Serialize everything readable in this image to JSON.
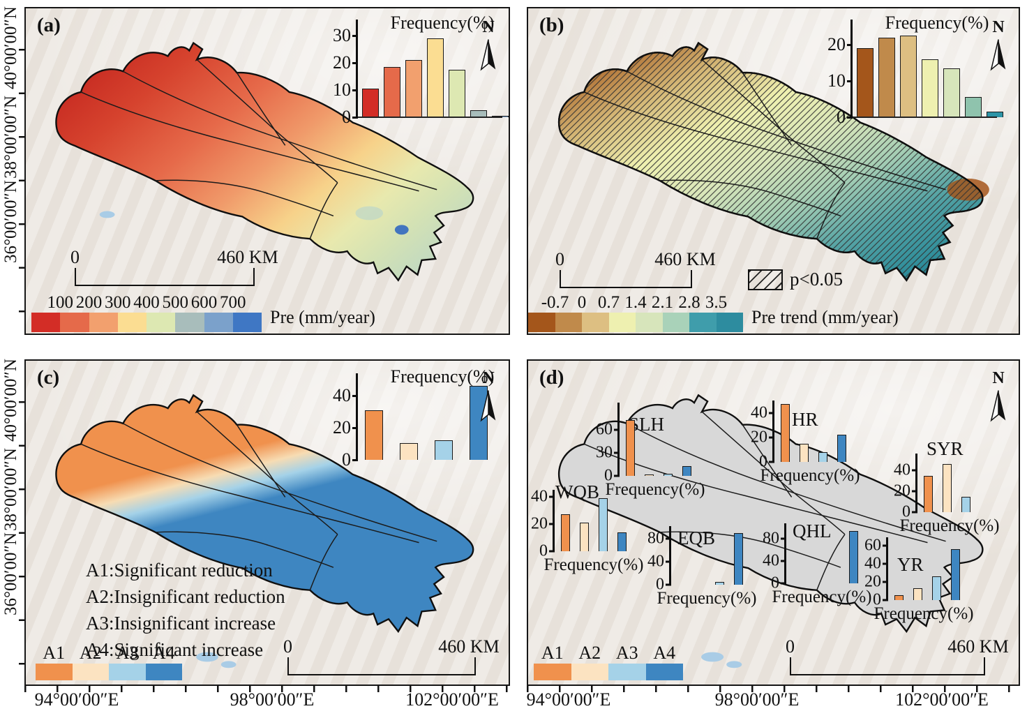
{
  "figure": {
    "north_label": "N",
    "lat_labels": [
      "40°00′00″N",
      "38°00′00″N",
      "36°00′00″N"
    ],
    "lon_labels": [
      "94°00′00″E",
      "98°00′00″E",
      "102°00′00″E"
    ],
    "scalebar": {
      "start": "0",
      "end": "460 KM"
    }
  },
  "palettes": {
    "pre": [
      "#d32d26",
      "#e56a4a",
      "#f2a06e",
      "#fbdd92",
      "#dde8b2",
      "#a8bdbb",
      "#7ba1cb",
      "#3f77c4"
    ],
    "trend": [
      "#a4561b",
      "#c08a4b",
      "#ddbf82",
      "#eef0b0",
      "#d7e5bb",
      "#a9d2b9",
      "#3f9dab",
      "#2d8c9f"
    ],
    "classes": {
      "A1": "#f0914d",
      "A2": "#fce3c1",
      "A3": "#a5d2e8",
      "A4": "#3e86c1"
    }
  },
  "panel_a": {
    "label": "(a)",
    "colorbar": {
      "label_mode": "boundary",
      "labels": [
        "100",
        "200",
        "300",
        "400",
        "500",
        "600",
        "700"
      ],
      "colors": [
        "#d32d26",
        "#e56a4a",
        "#f2a06e",
        "#fbdd92",
        "#dde8b2",
        "#a8bdbb",
        "#7ba1cb",
        "#3f77c4"
      ],
      "caption": "Pre (mm/year)"
    }
  },
  "panel_b": {
    "label": "(b)",
    "hatch_label": "p<0.05",
    "colorbar": {
      "label_mode": "boundary",
      "labels": [
        "-0.7",
        "0",
        "0.7",
        "1.4",
        "2.1",
        "2.8",
        "3.5"
      ],
      "colors": [
        "#a4561b",
        "#c08a4b",
        "#ddbf82",
        "#eef0b0",
        "#d7e5bb",
        "#a9d2b9",
        "#3f9dab",
        "#2d8c9f"
      ],
      "caption": "Pre trend (mm/year)"
    }
  },
  "panel_c": {
    "label": "(c)",
    "legend_lines": [
      "A1:Significant reduction",
      "A2:Insignificant reduction",
      "A3:Insignificant increase",
      "A4:Significant increase"
    ],
    "class_legend": {
      "label_mode": "center",
      "labels": [
        "A1",
        "A2",
        "A3",
        "A4"
      ],
      "colors": [
        "#f0914d",
        "#fce3c1",
        "#a5d2e8",
        "#3e86c1"
      ]
    }
  },
  "panel_d": {
    "label": "(d)",
    "class_legend": {
      "label_mode": "center",
      "labels": [
        "A1",
        "A2",
        "A3",
        "A4"
      ],
      "colors": [
        "#f0914d",
        "#fce3c1",
        "#a5d2e8",
        "#3e86c1"
      ]
    }
  },
  "chart_data": [
    {
      "id": "panel_a_frequency",
      "panel": "a",
      "type": "bar",
      "title": "Frequency(%)",
      "categories": [
        "100",
        "200",
        "300",
        "400",
        "500",
        "600",
        "700"
      ],
      "values": [
        10.5,
        18.5,
        21,
        29,
        17.5,
        2.5,
        0.5
      ],
      "yticks": [
        0,
        10,
        20,
        30
      ],
      "ylim": [
        0,
        36
      ],
      "colors": [
        "#d32d26",
        "#e56a4a",
        "#f2a06e",
        "#fbdd92",
        "#dde8b2",
        "#a8bdbb",
        "#7ba1cb"
      ]
    },
    {
      "id": "panel_b_frequency",
      "panel": "b",
      "type": "bar",
      "title": "Frequency(%)",
      "categories": [
        "-0.7",
        "0",
        "0.7",
        "1.4",
        "2.1",
        "2.8",
        "3.5"
      ],
      "values": [
        19,
        22,
        22.5,
        16,
        13.5,
        5.5,
        1.5
      ],
      "yticks": [
        0,
        10,
        20
      ],
      "ylim": [
        0,
        27
      ],
      "colors": [
        "#a4561b",
        "#c08a4b",
        "#ddbf82",
        "#eef0b0",
        "#d7e5bb",
        "#8fc3ad",
        "#2d94a6"
      ]
    },
    {
      "id": "panel_c_frequency",
      "panel": "c",
      "type": "bar",
      "title": "Frequency(%)",
      "categories": [
        "A1",
        "A2",
        "A3",
        "A4"
      ],
      "values": [
        31,
        10.5,
        12,
        46
      ],
      "yticks": [
        0,
        20,
        40
      ],
      "ylim": [
        0,
        54
      ],
      "colors": [
        "#f0914d",
        "#fce3c1",
        "#a5d2e8",
        "#3e86c1"
      ]
    },
    {
      "id": "SLH",
      "name": "SLH",
      "panel": "d",
      "type": "bar",
      "title": "Frequency(%)",
      "categories": [
        "A1",
        "A2",
        "A3",
        "A4"
      ],
      "values": [
        72,
        2,
        3,
        13
      ],
      "yticks": [
        0,
        30,
        60
      ],
      "ylim": [
        0,
        95
      ],
      "colors": [
        "#f0914d",
        "#fce3c1",
        "#a5d2e8",
        "#3e86c1"
      ]
    },
    {
      "id": "HR",
      "name": "HR",
      "panel": "d",
      "type": "bar",
      "title": "Frequency(%)",
      "categories": [
        "A1",
        "A2",
        "A3",
        "A4"
      ],
      "values": [
        47,
        15,
        8,
        22
      ],
      "yticks": [
        0,
        20,
        40
      ],
      "ylim": [
        0,
        50
      ],
      "colors": [
        "#f0914d",
        "#fce3c1",
        "#a5d2e8",
        "#3e86c1"
      ]
    },
    {
      "id": "SYR",
      "name": "SYR",
      "panel": "d",
      "type": "bar",
      "title": "Frequency(%)",
      "categories": [
        "A1",
        "A2",
        "A3",
        "A4"
      ],
      "values": [
        35,
        46,
        15,
        0
      ],
      "yticks": [
        0,
        20,
        40
      ],
      "ylim": [
        0,
        56
      ],
      "colors": [
        "#f0914d",
        "#fce3c1",
        "#a5d2e8",
        "#3e86c1"
      ]
    },
    {
      "id": "WQB",
      "name": "WQB",
      "panel": "d",
      "type": "bar",
      "title": "Frequency(%)",
      "categories": [
        "A1",
        "A2",
        "A3",
        "A4"
      ],
      "values": [
        27,
        21,
        39,
        14
      ],
      "yticks": [
        0,
        20,
        40
      ],
      "ylim": [
        0,
        45
      ],
      "colors": [
        "#f0914d",
        "#fce3c1",
        "#a5d2e8",
        "#3e86c1"
      ]
    },
    {
      "id": "EQB",
      "name": "EQB",
      "panel": "d",
      "type": "bar",
      "title": "Frequency(%)",
      "categories": [
        "A1",
        "A2",
        "A3",
        "A4"
      ],
      "values": [
        0,
        0,
        5,
        90
      ],
      "yticks": [
        0,
        40,
        80
      ],
      "ylim": [
        0,
        102
      ],
      "colors": [
        "#f0914d",
        "#fce3c1",
        "#a5d2e8",
        "#3e86c1"
      ]
    },
    {
      "id": "QHL",
      "name": "QHL",
      "panel": "d",
      "type": "bar",
      "title": "Frequency(%)",
      "categories": [
        "A1",
        "A2",
        "A3",
        "A4"
      ],
      "values": [
        0,
        0,
        0,
        93
      ],
      "yticks": [
        0,
        40,
        80
      ],
      "ylim": [
        0,
        107
      ],
      "colors": [
        "#f0914d",
        "#fce3c1",
        "#a5d2e8",
        "#3e86c1"
      ]
    },
    {
      "id": "YR",
      "name": "YR",
      "panel": "d",
      "type": "bar",
      "title": "Frequency(%)",
      "categories": [
        "A1",
        "A2",
        "A3",
        "A4"
      ],
      "values": [
        5,
        13,
        26,
        56
      ],
      "yticks": [
        0,
        20,
        40,
        60
      ],
      "ylim": [
        0,
        69
      ],
      "colors": [
        "#f0914d",
        "#fce3c1",
        "#a5d2e8",
        "#3e86c1"
      ]
    }
  ]
}
